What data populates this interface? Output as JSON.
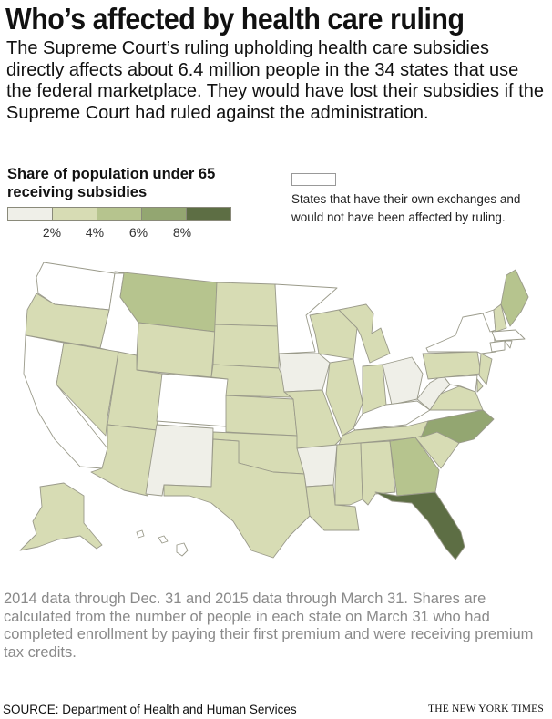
{
  "title": "Who’s affected by health care ruling",
  "intro": "The Supreme Court’s ruling upholding health care subsidies directly affects about 6.4 million people in the 34 states that use the federal marketplace. They would have lost their subsidies if the Supreme Court had ruled against the administration.",
  "legend": {
    "title": "Share of population under 65 receiving subsidies",
    "bins": [
      {
        "color": "#efefe8"
      },
      {
        "color": "#d7dcb4"
      },
      {
        "color": "#b6c48e"
      },
      {
        "color": "#93a671"
      },
      {
        "color": "#5d6e44"
      }
    ],
    "ticks": [
      "2%",
      "4%",
      "6%",
      "8%"
    ],
    "own_exchange_color": "#ffffff",
    "own_exchange_label": "States that have their own exchanges and would not have been affected by ruling."
  },
  "map": {
    "state_colors": {
      "own_exchange": "#ffffff",
      "lt2": "#efefe8",
      "p2_4": "#d7dcb4",
      "p4_6": "#b6c48e",
      "p6_8": "#93a671",
      "gt8": "#5d6e44"
    }
  },
  "note": "2014 data through Dec. 31 and 2015 data through March 31. Shares are calculated from the number of people in each state on March 31 who had completed enrollment by paying their first premium and were receiving premium tax credits.",
  "source": "SOURCE: Department of Health and Human Services",
  "credit": "THE NEW YORK TIMES"
}
